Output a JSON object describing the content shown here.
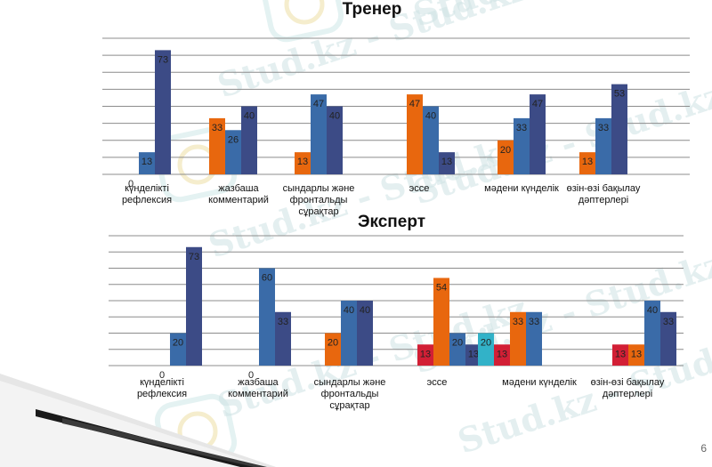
{
  "page_number": "6",
  "watermark": "Stud.kz - Stud.kz",
  "colors": {
    "red": "#d21f35",
    "orange": "#e8670e",
    "steel": "#3a6ba8",
    "navy": "#3c4b86",
    "teal": "#32b2c8"
  },
  "chart_data": [
    {
      "type": "bar",
      "title": "Тренер",
      "categories": [
        [
          "күнделікті",
          "рефлексия"
        ],
        [
          "жазбаша",
          "комментарий"
        ],
        [
          "сындарлы және",
          "фронтальды",
          "сұрақтар"
        ],
        [
          "эссе"
        ],
        [
          "мәдени күнделік"
        ],
        [
          "өзін-өзі бақылау",
          "дәптерлері"
        ]
      ],
      "series": [
        {
          "color": "#e8670e",
          "values": [
            0,
            33,
            13,
            47,
            20,
            13
          ]
        },
        {
          "color": "#3a6ba8",
          "values": [
            13,
            26,
            47,
            40,
            33,
            33
          ]
        },
        {
          "color": "#3c4b86",
          "values": [
            73,
            40,
            40,
            13,
            47,
            53
          ]
        }
      ],
      "point_labels": [
        [
          "0",
          "33",
          "13",
          "47",
          "20",
          "13"
        ],
        [
          "13",
          "26",
          "47",
          "40",
          "33",
          "33"
        ],
        [
          "73",
          "40",
          "40",
          "13",
          "47",
          "53"
        ]
      ],
      "ylim": [
        0,
        80
      ],
      "gridlines": 8,
      "grid": true
    },
    {
      "type": "bar",
      "title": "Эксперт",
      "categories": [
        [
          "күнделікті",
          "рефлексия"
        ],
        [
          "жазбаша",
          "комментарий"
        ],
        [
          "сындарлы және",
          "фронтальды",
          "сұрақтар"
        ],
        [
          "эссе"
        ],
        [
          "мәдени күнделік"
        ],
        [
          "өзін-өзі бақылау",
          "дәптерлері"
        ]
      ],
      "series": [
        {
          "color": "#d21f35",
          "values": [
            0,
            0,
            0,
            13,
            0,
            13
          ]
        },
        {
          "color": "#32b2c8",
          "values": [
            0,
            0,
            0,
            0,
            20,
            0
          ]
        },
        {
          "color": "#e8670e",
          "values": [
            0,
            0,
            20,
            54,
            0,
            13
          ]
        },
        {
          "color": "#3a6ba8",
          "values": [
            20,
            60,
            40,
            20,
            0,
            40
          ]
        },
        {
          "color": "#3c4b86",
          "values": [
            73,
            33,
            40,
            13,
            0,
            33
          ]
        },
        {
          "color": "#d21f35",
          "values": [
            0,
            0,
            0,
            0,
            13,
            0
          ]
        },
        {
          "color": "#e8670e",
          "values": [
            0,
            0,
            0,
            0,
            33,
            0
          ]
        },
        {
          "color": "#3a6ba8",
          "values": [
            0,
            0,
            0,
            0,
            33,
            0
          ]
        }
      ],
      "point_labels": [
        [
          "0",
          "0",
          "",
          "13",
          "",
          "13"
        ],
        [
          "",
          "",
          "",
          "",
          "20",
          ""
        ],
        [
          "",
          "",
          "20",
          "54",
          "",
          "13"
        ],
        [
          "20",
          "60",
          "40",
          "20",
          "",
          "40"
        ],
        [
          "73",
          "33",
          "40",
          "13",
          "",
          "33"
        ],
        [
          "",
          "",
          "",
          "",
          "13",
          ""
        ],
        [
          "",
          "",
          "",
          "",
          "33",
          ""
        ],
        [
          "",
          "",
          "",
          "",
          "33",
          ""
        ]
      ],
      "ylim": [
        0,
        80
      ],
      "gridlines": 8,
      "grid": true
    }
  ]
}
